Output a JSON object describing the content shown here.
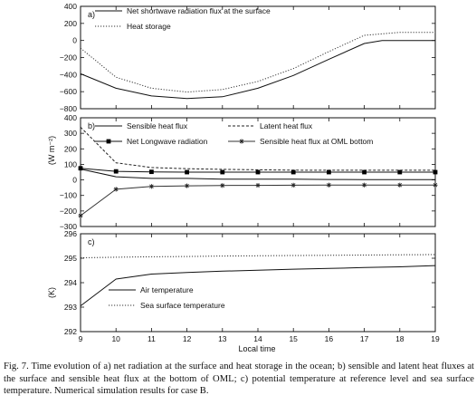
{
  "chart_data": [
    {
      "panel": "a)",
      "type": "line",
      "ylim": [
        -800,
        400
      ],
      "yticks": [
        "400",
        "200",
        "0",
        "−200",
        "−400",
        "−600",
        "−800"
      ],
      "xlim": [
        9,
        19
      ],
      "grid": false,
      "legend": "top-left",
      "series": [
        {
          "name": "Net shortwave radiation flux at the surface",
          "style": "solid",
          "x": [
            9,
            10,
            11,
            12,
            13,
            14,
            15,
            16,
            17,
            17.5,
            18,
            19
          ],
          "y": [
            -390,
            -560,
            -650,
            -680,
            -660,
            -560,
            -410,
            -220,
            -35,
            0,
            0,
            0
          ]
        },
        {
          "name": "Heat storage",
          "style": "dotted",
          "x": [
            9,
            10,
            11,
            12,
            13,
            14,
            15,
            16,
            17,
            18,
            19
          ],
          "y": [
            -90,
            -430,
            -560,
            -605,
            -575,
            -480,
            -330,
            -130,
            60,
            95,
            95
          ]
        }
      ]
    },
    {
      "panel": "b)",
      "type": "line",
      "ylim": [
        -300,
        400
      ],
      "yticks": [
        "400",
        "300",
        "200",
        "100",
        "0",
        "−100",
        "−200",
        "−300"
      ],
      "xlim": [
        9,
        19
      ],
      "grid": false,
      "legend": "top",
      "series": [
        {
          "name": "Sensible heat flux",
          "style": "solid",
          "x": [
            9,
            10,
            11,
            12,
            13,
            14,
            15,
            16,
            17,
            18,
            19
          ],
          "y": [
            70,
            20,
            10,
            10,
            5,
            5,
            5,
            3,
            2,
            2,
            2
          ]
        },
        {
          "name": "Latent heat flux",
          "style": "dashed",
          "x": [
            9,
            10,
            11,
            12,
            13,
            14,
            15,
            16,
            17,
            18,
            19
          ],
          "y": [
            340,
            110,
            80,
            72,
            68,
            65,
            63,
            62,
            62,
            62,
            62
          ]
        },
        {
          "name": "Net  Longwave  radiation",
          "style": "solid-square",
          "x": [
            9,
            10,
            11,
            12,
            13,
            14,
            15,
            16,
            17,
            18,
            19
          ],
          "y": [
            75,
            55,
            52,
            50,
            50,
            50,
            50,
            50,
            50,
            50,
            50
          ]
        },
        {
          "name": "Sensible heat flux at OML bottom",
          "style": "solid-star",
          "x": [
            9,
            10,
            11,
            12,
            13,
            14,
            15,
            16,
            17,
            18,
            19
          ],
          "y": [
            -230,
            -60,
            -42,
            -38,
            -36,
            -35,
            -34,
            -33,
            -33,
            -33,
            -33
          ]
        }
      ]
    },
    {
      "panel": "c)",
      "type": "line",
      "ylim": [
        292,
        296
      ],
      "yticks": [
        "296",
        "295",
        "294",
        "293",
        "292"
      ],
      "xlim": [
        9,
        19
      ],
      "xticks": [
        "9",
        "10",
        "11",
        "12",
        "13",
        "14",
        "15",
        "16",
        "17",
        "18",
        "19"
      ],
      "xlabel": "Local time",
      "grid": false,
      "legend": "bottom-left",
      "series": [
        {
          "name": "Air temperature",
          "style": "solid",
          "x": [
            9,
            10,
            11,
            12,
            13,
            14,
            15,
            16,
            17,
            18,
            19
          ],
          "y": [
            293.05,
            294.15,
            294.35,
            294.42,
            294.47,
            294.51,
            294.55,
            294.58,
            294.62,
            294.65,
            294.7
          ]
        },
        {
          "name": "Sea surface temperature",
          "style": "dotted",
          "x": [
            9,
            10,
            11,
            12,
            13,
            14,
            15,
            16,
            17,
            18,
            19
          ],
          "y": [
            295.02,
            295.04,
            295.06,
            295.07,
            295.09,
            295.1,
            295.11,
            295.12,
            295.13,
            295.14,
            295.15
          ]
        }
      ]
    }
  ],
  "ylabel_ab": "(W m⁻²)",
  "ylabel_c": "(K)",
  "caption": "Fig. 7. Time evolution of a) net radiation at the surface and heat storage in the ocean; b) sensible and latent heat fluxes at the surface and sensible heat flux at the bottom of OML; c) potential temperature at reference level and sea surface temperature. Numerical simulation results for case B."
}
